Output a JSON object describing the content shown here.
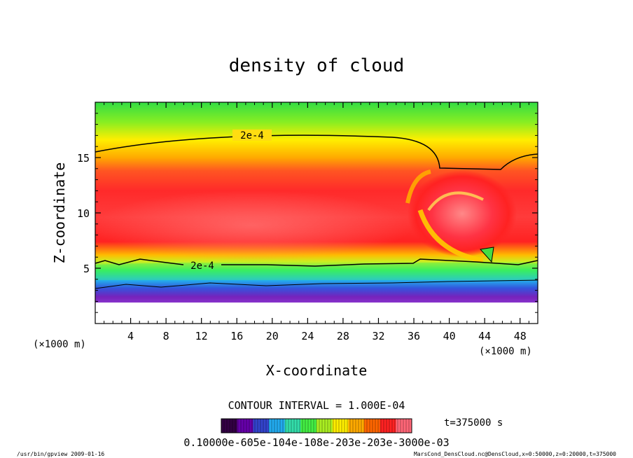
{
  "chart_data": {
    "type": "heatmap",
    "title": "density of cloud",
    "xlabel": "X-coordinate",
    "ylabel": "Z-coordinate",
    "x_unit": "(×1000 m)",
    "z_unit": "(×1000 m)",
    "xlim": [
      0,
      50
    ],
    "ylim": [
      0,
      20
    ],
    "x_ticks": [
      "4",
      "8",
      "12",
      "16",
      "20",
      "24",
      "28",
      "32",
      "36",
      "40",
      "44",
      "48"
    ],
    "y_ticks": [
      "5",
      "10",
      "15"
    ],
    "contour_interval": "CONTOUR INTERVAL = 1.000E-04",
    "contour_label_upper": "2e-4",
    "contour_label_lower": "2e-4",
    "time": "t=375000 s",
    "colorbar": {
      "min": 0.0001,
      "max": 0.0003,
      "tick_text": "0.10000e-605e-104e-108e-203e-203e-3000e-03",
      "colors": [
        "#330044",
        "#6600aa",
        "#3344cc",
        "#22aaee",
        "#33ddaa",
        "#44ee44",
        "#aaee22",
        "#ffee00",
        "#ffaa00",
        "#ff6600",
        "#ff2222",
        "#ff6677"
      ]
    },
    "footer_left": "/usr/bin/gpview   2009-01-16",
    "footer_right": "MarsCond_DensCloud.nc@DensCloud,x=0:50000,z=0:20000,t=375000"
  }
}
